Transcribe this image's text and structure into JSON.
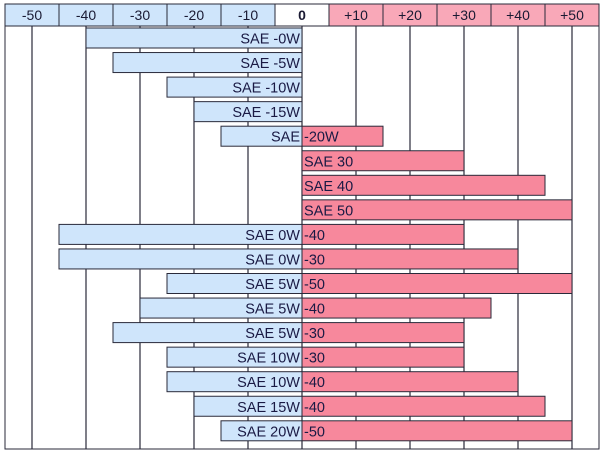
{
  "chart_data": {
    "type": "bar",
    "orientation": "horizontal-range",
    "title": "",
    "xlabel": "",
    "ylabel": "",
    "xlim": [
      -55,
      55
    ],
    "x_ticks": [
      {
        "value": -50,
        "label": "-50"
      },
      {
        "value": -40,
        "label": "-40"
      },
      {
        "value": -30,
        "label": "-30"
      },
      {
        "value": -20,
        "label": "-20"
      },
      {
        "value": -10,
        "label": "-10"
      },
      {
        "value": 0,
        "label": "0"
      },
      {
        "value": 10,
        "label": "+10"
      },
      {
        "value": 20,
        "label": "+20"
      },
      {
        "value": 30,
        "label": "+30"
      },
      {
        "value": 40,
        "label": "+40"
      },
      {
        "value": 50,
        "label": "+50"
      }
    ],
    "grid": true,
    "colors": {
      "cold": "#cfe5fb",
      "hot": "#f7889c",
      "cold_header": "#cfe5fb",
      "hot_header": "#f9a8b8",
      "border": "#2a2a3a"
    },
    "rows": [
      {
        "left_text": "SAE -0W",
        "right_text": "",
        "min": -40,
        "max": 0
      },
      {
        "left_text": "SAE -5W",
        "right_text": "",
        "min": -35,
        "max": 0
      },
      {
        "left_text": "SAE -10W",
        "right_text": "",
        "min": -25,
        "max": 0
      },
      {
        "left_text": "SAE -15W",
        "right_text": "",
        "min": -20,
        "max": 0
      },
      {
        "left_text": "SAE ",
        "right_text": "-20W",
        "min": -15,
        "max": 15
      },
      {
        "left_text": "",
        "right_text": "SAE 30",
        "min": 0,
        "max": 30
      },
      {
        "left_text": "",
        "right_text": "SAE 40",
        "min": 0,
        "max": 45
      },
      {
        "left_text": "",
        "right_text": "SAE 50",
        "min": 0,
        "max": 50
      },
      {
        "left_text": "SAE 0W",
        "right_text": "-40",
        "min": -45,
        "max": 30
      },
      {
        "left_text": "SAE 0W",
        "right_text": "-30",
        "min": -45,
        "max": 40
      },
      {
        "left_text": "SAE 5W",
        "right_text": "-50",
        "min": -25,
        "max": 50
      },
      {
        "left_text": "SAE 5W",
        "right_text": "-40",
        "min": -30,
        "max": 35
      },
      {
        "left_text": "SAE 5W",
        "right_text": "-30",
        "min": -35,
        "max": 30
      },
      {
        "left_text": "SAE 10W",
        "right_text": "-30",
        "min": -25,
        "max": 30
      },
      {
        "left_text": "SAE 10W",
        "right_text": "-40",
        "min": -25,
        "max": 40
      },
      {
        "left_text": "SAE 15W",
        "right_text": "-40",
        "min": -20,
        "max": 45
      },
      {
        "left_text": "SAE 20W",
        "right_text": "-50",
        "min": -15,
        "max": 50
      }
    ]
  }
}
